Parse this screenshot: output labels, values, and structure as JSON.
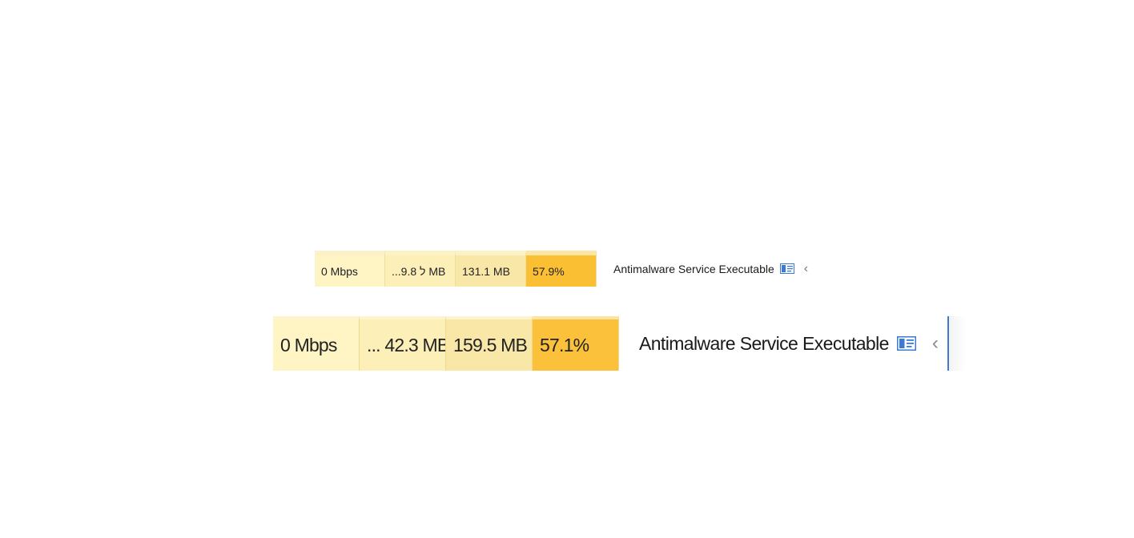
{
  "rows": [
    {
      "network": "0 Mbps",
      "disk": "...ל 9.8 MB",
      "memory": "131.1 MB",
      "cpu": "57.9%",
      "process_name": "Antimalware Service Executable"
    },
    {
      "network": "0 Mbps",
      "disk": "... 42.3 MB",
      "memory": "159.5 MB",
      "cpu": "57.1%",
      "process_name": "Antimalware Service Executable"
    }
  ],
  "icons": {
    "details_pane": "details-pane-icon",
    "collapse": "chevron-left-icon"
  },
  "colors": {
    "network_cell": "#fff4c4",
    "disk_cell": "#fcefb8",
    "memory_cell": "#f9e7a8",
    "cpu_cell": "#fbc13a",
    "accent": "#3a7bd5"
  }
}
